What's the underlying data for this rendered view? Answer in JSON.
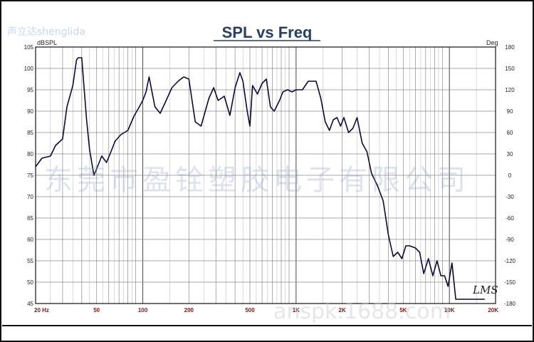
{
  "chart_data": {
    "type": "line",
    "title": "SPL vs Freq",
    "ylabel_left": "dBSPL",
    "ylabel_right": "Deg",
    "xscale": "log",
    "xlim": [
      20,
      20000
    ],
    "ylim": [
      45,
      105
    ],
    "ylim_right": [
      -180,
      180
    ],
    "grid": true,
    "x_ticks": [
      {
        "value": 20,
        "label": "20 Hz"
      },
      {
        "value": 50,
        "label": "50"
      },
      {
        "value": 100,
        "label": "100"
      },
      {
        "value": 200,
        "label": "200"
      },
      {
        "value": 500,
        "label": "500"
      },
      {
        "value": 1000,
        "label": "1K"
      },
      {
        "value": 2000,
        "label": "2K"
      },
      {
        "value": 5000,
        "label": "5K"
      },
      {
        "value": 10000,
        "label": "10K"
      },
      {
        "value": 20000,
        "label": "20K"
      }
    ],
    "y_ticks_left": [
      "105",
      "100",
      "95",
      "90",
      "85",
      "80",
      "75",
      "70",
      "65",
      "60",
      "55",
      "50",
      "45"
    ],
    "y_ticks_right": [
      "180",
      "150",
      "120",
      "90",
      "60",
      "30",
      "0",
      "-30",
      "-60",
      "-90",
      "-120",
      "-150",
      "-180"
    ],
    "series": [
      {
        "color": "#0a0a3a",
        "x": [
          20,
          22,
          25,
          27,
          30,
          32,
          35,
          37,
          38,
          40,
          43,
          45,
          48,
          50,
          54,
          58,
          62,
          66,
          72,
          80,
          88,
          95,
          100,
          105,
          110,
          120,
          130,
          140,
          155,
          170,
          185,
          200,
          220,
          240,
          270,
          290,
          310,
          340,
          370,
          400,
          430,
          450,
          480,
          500,
          520,
          560,
          600,
          640,
          680,
          720,
          780,
          820,
          880,
          940,
          1000,
          1100,
          1200,
          1350,
          1450,
          1550,
          1650,
          1750,
          1850,
          1950,
          2050,
          2200,
          2350,
          2500,
          2700,
          2900,
          3100,
          3400,
          3700,
          4000,
          4300,
          4600,
          4900,
          5200,
          5500,
          6000,
          6400,
          6800,
          7300,
          7800,
          8300,
          8800,
          9300,
          9800,
          10400,
          11000,
          11700,
          12400,
          13100,
          13800,
          14500,
          15500,
          16300,
          17000
        ],
        "y": [
          77,
          79,
          79.5,
          82,
          83.5,
          91,
          96,
          102,
          102.5,
          102.5,
          88,
          81,
          75,
          76.5,
          79.5,
          78,
          80.5,
          83,
          84.5,
          85.5,
          89,
          91,
          92.5,
          94.5,
          98,
          91,
          89.5,
          92,
          95.5,
          97,
          98,
          97.5,
          87.5,
          86.5,
          93,
          95.5,
          92.5,
          93.5,
          89,
          95.5,
          99,
          97,
          90,
          86.5,
          96,
          94,
          96.5,
          97.5,
          91,
          90,
          92.5,
          94.5,
          95,
          94.5,
          95,
          95,
          97,
          97,
          93,
          87.5,
          85.5,
          88,
          88.5,
          86.5,
          88.5,
          85,
          86,
          88.5,
          82.5,
          80.5,
          75.5,
          72.5,
          69,
          61,
          56,
          57,
          55.5,
          58.5,
          58.5,
          58,
          57,
          52,
          55.5,
          51.5,
          55,
          51.5,
          51.5,
          49,
          54.5,
          46,
          46,
          46,
          46,
          46,
          46,
          46,
          46,
          46
        ]
      }
    ]
  },
  "watermarks": {
    "top_left": "声立达shenglida",
    "center": "东莞市盈铨塑胶电子有限公司",
    "bottom_right": "anspk.1688.com"
  },
  "signature": "LMS"
}
